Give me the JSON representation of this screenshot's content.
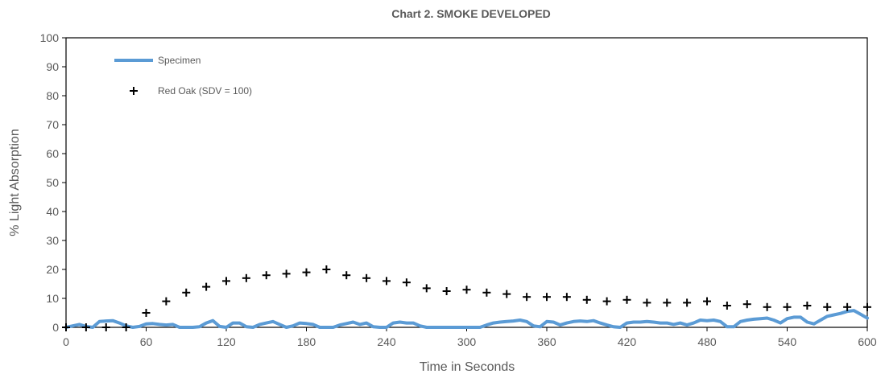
{
  "chart_data": {
    "type": "line",
    "title": "Chart 2. SMOKE DEVELOPED",
    "xlabel": "Time in Seconds",
    "ylabel": "% Light Absorption",
    "xlim": [
      0,
      600
    ],
    "ylim": [
      0,
      100
    ],
    "xticks": [
      "0",
      "60",
      "120",
      "180",
      "240",
      "300",
      "360",
      "420",
      "480",
      "540",
      "600"
    ],
    "yticks": [
      "0",
      "10",
      "20",
      "30",
      "40",
      "50",
      "60",
      "70",
      "80",
      "90",
      "100"
    ],
    "grid": false,
    "legend_position": "top-left",
    "series": [
      {
        "name": "Specimen",
        "style": "line",
        "color": "#5B9BD5",
        "x": [
          0,
          5,
          10,
          15,
          20,
          25,
          30,
          35,
          40,
          45,
          50,
          55,
          60,
          65,
          70,
          75,
          80,
          85,
          90,
          95,
          100,
          105,
          110,
          115,
          120,
          125,
          130,
          135,
          140,
          145,
          150,
          155,
          160,
          165,
          170,
          175,
          180,
          185,
          190,
          195,
          200,
          205,
          210,
          215,
          220,
          225,
          230,
          235,
          240,
          245,
          250,
          255,
          260,
          265,
          270,
          275,
          280,
          285,
          290,
          295,
          300,
          305,
          310,
          315,
          320,
          325,
          330,
          335,
          340,
          345,
          350,
          355,
          360,
          365,
          370,
          375,
          380,
          385,
          390,
          395,
          400,
          405,
          410,
          415,
          420,
          425,
          430,
          435,
          440,
          445,
          450,
          455,
          460,
          465,
          470,
          475,
          480,
          485,
          490,
          495,
          500,
          505,
          510,
          515,
          520,
          525,
          530,
          535,
          540,
          545,
          550,
          555,
          560,
          565,
          570,
          575,
          580,
          585,
          590,
          595,
          600
        ],
        "y": [
          0,
          0.5,
          1,
          0.3,
          0,
          2,
          2.2,
          2.3,
          1.5,
          0.5,
          0,
          0.3,
          1.2,
          1.3,
          1,
          0.8,
          1,
          0,
          0,
          0,
          0.2,
          1.5,
          2.3,
          0.3,
          0,
          1.5,
          1.5,
          0.2,
          0,
          1,
          1.5,
          2,
          1,
          0,
          0.5,
          1.5,
          1.3,
          1,
          0,
          0,
          0,
          0.8,
          1.3,
          1.8,
          1,
          1.5,
          0.2,
          0,
          0,
          1.5,
          1.8,
          1.5,
          1.5,
          0.5,
          0,
          0,
          0,
          0,
          0,
          0,
          0,
          0,
          0,
          0.8,
          1.5,
          1.8,
          2,
          2.2,
          2.5,
          2,
          0.5,
          0.2,
          2,
          1.8,
          0.8,
          1.5,
          2,
          2.2,
          2,
          2.3,
          1.5,
          0.8,
          0.2,
          0,
          1.5,
          1.8,
          1.8,
          2,
          1.8,
          1.5,
          1.5,
          1,
          1.5,
          0.8,
          1.5,
          2.5,
          2.3,
          2.5,
          2,
          0.2,
          0.2,
          2,
          2.5,
          2.8,
          3,
          3.2,
          2.5,
          1.5,
          3,
          3.5,
          3.5,
          1.8,
          1.2,
          2.5,
          3.8,
          4.3,
          4.8,
          5.5,
          5.8,
          4.5,
          3.2
        ]
      },
      {
        "name": "Red Oak (SDV = 100)",
        "style": "markers",
        "marker": "+",
        "color": "#000000",
        "x": [
          0,
          15,
          30,
          45,
          60,
          75,
          90,
          105,
          120,
          135,
          150,
          165,
          180,
          195,
          210,
          225,
          240,
          255,
          270,
          285,
          300,
          315,
          330,
          345,
          360,
          375,
          390,
          405,
          420,
          435,
          450,
          465,
          480,
          495,
          510,
          525,
          540,
          555,
          570,
          585,
          600
        ],
        "y": [
          0,
          0,
          0,
          0,
          5,
          9,
          12,
          14,
          16,
          17,
          18,
          18.5,
          19,
          20,
          18,
          17,
          16,
          15.5,
          13.5,
          12.5,
          13,
          12,
          11.5,
          10.5,
          10.5,
          10.5,
          9.5,
          9,
          9.5,
          8.5,
          8.5,
          8.5,
          9,
          7.5,
          8,
          7,
          7,
          7.5,
          7,
          7,
          7
        ]
      }
    ]
  }
}
